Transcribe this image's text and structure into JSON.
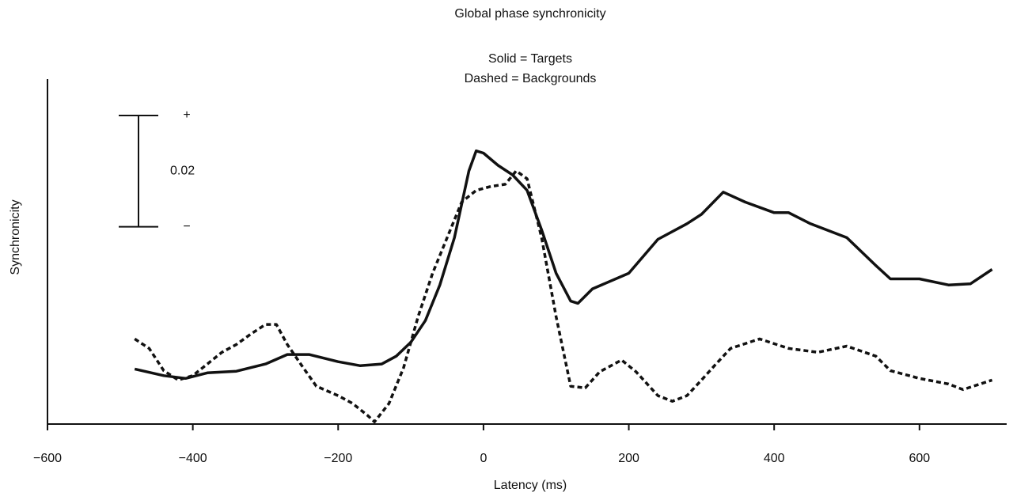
{
  "chart_data": {
    "type": "line",
    "title": "Global phase synchronicity",
    "x_label": "Latency (ms)",
    "y_label": "Synchronicity",
    "xlim": [
      -600,
      720
    ],
    "xticks": [
      {
        "value": -600,
        "label": "−600"
      },
      {
        "value": -400,
        "label": "−400"
      },
      {
        "value": -200,
        "label": "−200"
      },
      0,
      200,
      400,
      600
    ],
    "ylim": [
      0,
      0.062
    ],
    "scale_bar": {
      "value": 0.02,
      "top_label": "+",
      "bottom_label": "−"
    },
    "series": [
      {
        "name": "Solid = Targets",
        "color": "#111111",
        "dashed": false,
        "x": [
          -480,
          -440,
          -410,
          -380,
          -340,
          -300,
          -270,
          -240,
          -200,
          -170,
          -140,
          -120,
          -100,
          -80,
          -60,
          -40,
          -20,
          -10,
          0,
          20,
          40,
          60,
          80,
          100,
          120,
          130,
          150,
          200,
          240,
          280,
          300,
          330,
          360,
          400,
          420,
          450,
          500,
          540,
          560,
          600,
          640,
          670,
          700
        ],
        "values": [
          0.0099,
          0.0087,
          0.0082,
          0.0092,
          0.0095,
          0.0108,
          0.0125,
          0.0125,
          0.0112,
          0.0105,
          0.0108,
          0.0122,
          0.0147,
          0.0186,
          0.025,
          0.0335,
          0.0455,
          0.0491,
          0.0487,
          0.0465,
          0.0448,
          0.042,
          0.0349,
          0.0271,
          0.0221,
          0.0217,
          0.0243,
          0.0271,
          0.0332,
          0.036,
          0.0377,
          0.0417,
          0.0399,
          0.038,
          0.038,
          0.036,
          0.0335,
          0.0285,
          0.0261,
          0.0261,
          0.025,
          0.0252,
          0.0278
        ]
      },
      {
        "name": "Dashed = Backgrounds",
        "color": "#111111",
        "dashed": true,
        "x": [
          -480,
          -460,
          -440,
          -420,
          -400,
          -380,
          -360,
          -340,
          -320,
          -300,
          -285,
          -270,
          -250,
          -230,
          -200,
          -180,
          -160,
          -150,
          -130,
          -110,
          -90,
          -70,
          -50,
          -30,
          -10,
          10,
          30,
          45,
          60,
          80,
          100,
          120,
          140,
          160,
          190,
          210,
          240,
          260,
          280,
          300,
          320,
          340,
          380,
          420,
          460,
          500,
          540,
          560,
          600,
          640,
          660,
          700
        ],
        "values": [
          0.0153,
          0.0136,
          0.0096,
          0.0079,
          0.0087,
          0.0108,
          0.0129,
          0.0143,
          0.0162,
          0.0179,
          0.0179,
          0.0143,
          0.0105,
          0.0068,
          0.0051,
          0.0037,
          0.0016,
          0.0004,
          0.0037,
          0.0101,
          0.0193,
          0.0271,
          0.0335,
          0.0399,
          0.042,
          0.0427,
          0.0431,
          0.0455,
          0.0441,
          0.0335,
          0.0193,
          0.0068,
          0.0065,
          0.0094,
          0.0115,
          0.0094,
          0.0051,
          0.0041,
          0.0051,
          0.0079,
          0.0108,
          0.0136,
          0.0153,
          0.0136,
          0.0129,
          0.014,
          0.0122,
          0.0096,
          0.0082,
          0.0072,
          0.0062,
          0.0079
        ]
      }
    ]
  }
}
